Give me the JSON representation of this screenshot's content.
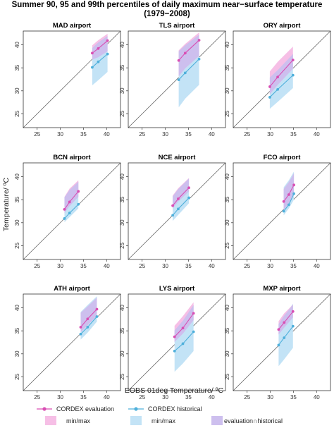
{
  "title_line1": "Summer 90, 95 and 99th percentiles of daily maximum near−surface temperature",
  "title_line2": "(1979−2008)",
  "xlabel": "EOBS 01deg Temperature/ ºC",
  "ylabel": "Temperature/ ºC",
  "legend": {
    "eval_line": "CORDEX evaluation",
    "hist_line": "CORDEX historical",
    "eval_range": "min/max",
    "hist_range": "min/max",
    "overlap": "evaluation∩historical"
  },
  "colors": {
    "evaluation": "#d94fb4",
    "historical": "#4fb0db",
    "eval_fill": "#f6bfe6",
    "hist_fill": "#c3e3f6",
    "overlap_fill": "#cdbfee"
  },
  "chart_data": {
    "type": "scatter",
    "xlim": [
      22,
      43
    ],
    "ylim": [
      22,
      43
    ],
    "xticks": [
      25,
      30,
      35,
      40
    ],
    "yticks": [
      25,
      30,
      35,
      40
    ],
    "reference_line": "1:1",
    "panels": [
      {
        "name": "MAD airport",
        "x": [
          36.9,
          38.2,
          40.2
        ],
        "evaluation": {
          "values": [
            38.2,
            39.2,
            40.9
          ],
          "min": [
            36.8,
            37.3,
            38.6
          ],
          "max": [
            39.9,
            41.0,
            42.4
          ]
        },
        "historical": {
          "values": [
            35.1,
            36.3,
            38.0
          ],
          "min": [
            31.2,
            32.3,
            34.1
          ],
          "max": [
            39.3,
            40.5,
            41.9
          ]
        }
      },
      {
        "name": "TLS airport",
        "x": [
          32.9,
          34.3,
          37.3
        ],
        "evaluation": {
          "values": [
            36.6,
            38.2,
            41.0
          ],
          "min": [
            33.2,
            34.9,
            37.6
          ],
          "max": [
            38.8,
            40.2,
            42.7
          ]
        },
        "historical": {
          "values": [
            32.4,
            33.9,
            36.9
          ],
          "min": [
            26.4,
            28.3,
            31.3
          ],
          "max": [
            38.6,
            39.9,
            42.2
          ]
        }
      },
      {
        "name": "ORY airport",
        "x": [
          29.9,
          31.6,
          34.9
        ],
        "evaluation": {
          "values": [
            30.9,
            33.0,
            36.7
          ],
          "min": [
            29.3,
            31.3,
            34.8
          ],
          "max": [
            34.2,
            36.3,
            39.6
          ]
        },
        "historical": {
          "values": [
            28.6,
            30.3,
            33.4
          ],
          "min": [
            26.1,
            27.6,
            30.6
          ],
          "max": [
            32.9,
            34.5,
            38.0
          ]
        }
      },
      {
        "name": "BCN airport",
        "x": [
          30.9,
          32.0,
          33.9
        ],
        "evaluation": {
          "values": [
            32.9,
            34.5,
            36.8
          ],
          "min": [
            32.1,
            33.6,
            35.6
          ],
          "max": [
            35.6,
            37.4,
            39.2
          ]
        },
        "historical": {
          "values": [
            30.9,
            32.1,
            34.0
          ],
          "min": [
            30.1,
            31.2,
            33.1
          ],
          "max": [
            35.5,
            37.1,
            38.9
          ]
        }
      },
      {
        "name": "NCE airport",
        "x": [
          31.6,
          32.8,
          35.1
        ],
        "evaluation": {
          "values": [
            33.7,
            35.2,
            37.6
          ],
          "min": [
            33.1,
            34.6,
            36.8
          ],
          "max": [
            35.9,
            37.5,
            39.7
          ]
        },
        "historical": {
          "values": [
            31.6,
            33.0,
            35.4
          ],
          "min": [
            30.4,
            31.7,
            34.2
          ],
          "max": [
            35.7,
            37.3,
            39.6
          ]
        }
      },
      {
        "name": "FCO airport",
        "x": [
          32.9,
          34.0,
          35.1
        ],
        "evaluation": {
          "values": [
            34.6,
            36.1,
            38.2
          ],
          "min": [
            32.8,
            34.2,
            36.4
          ],
          "max": [
            37.3,
            38.8,
            40.7
          ]
        },
        "historical": {
          "values": [
            32.5,
            33.9,
            36.3
          ],
          "min": [
            31.6,
            33.1,
            35.0
          ],
          "max": [
            37.7,
            39.2,
            41.1
          ]
        }
      },
      {
        "name": "ATH airport",
        "x": [
          34.4,
          35.9,
          37.9
        ],
        "evaluation": {
          "values": [
            35.8,
            37.6,
            39.7
          ],
          "min": [
            34.7,
            36.2,
            38.3
          ],
          "max": [
            38.9,
            40.3,
            42.2
          ]
        },
        "historical": {
          "values": [
            34.3,
            35.8,
            38.1
          ],
          "min": [
            33.1,
            34.6,
            37.0
          ],
          "max": [
            39.1,
            40.6,
            42.5
          ]
        }
      },
      {
        "name": "LYS airport",
        "x": [
          32.0,
          33.8,
          36.1
        ],
        "evaluation": {
          "values": [
            33.7,
            35.6,
            38.8
          ],
          "min": [
            32.6,
            34.4,
            37.3
          ],
          "max": [
            36.1,
            38.2,
            41.2
          ]
        },
        "historical": {
          "values": [
            30.6,
            32.2,
            34.8
          ],
          "min": [
            26.1,
            27.9,
            30.6
          ],
          "max": [
            35.1,
            37.2,
            40.6
          ]
        }
      },
      {
        "name": "MXP airport",
        "x": [
          31.8,
          33.0,
          34.9
        ],
        "evaluation": {
          "values": [
            35.3,
            36.8,
            39.2
          ],
          "min": [
            34.2,
            35.7,
            37.9
          ],
          "max": [
            37.1,
            38.8,
            40.7
          ]
        },
        "historical": {
          "values": [
            31.9,
            33.5,
            36.0
          ],
          "min": [
            27.3,
            28.8,
            31.3
          ],
          "max": [
            36.5,
            38.3,
            40.9
          ]
        }
      }
    ]
  }
}
